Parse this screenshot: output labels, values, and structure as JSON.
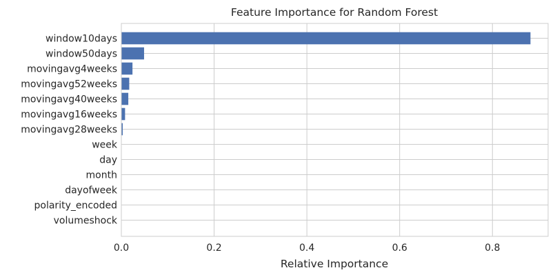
{
  "chart_data": {
    "type": "bar",
    "orientation": "horizontal",
    "title": "Feature Importance for Random Forest",
    "xlabel": "Relative Importance",
    "ylabel": "",
    "xlim": [
      0,
      0.92
    ],
    "xticks": [
      0.0,
      0.2,
      0.4,
      0.6,
      0.8
    ],
    "xtick_labels": [
      "0.0",
      "0.2",
      "0.4",
      "0.6",
      "0.8"
    ],
    "grid": true,
    "bar_color": "#4c72b0",
    "categories": [
      "window10days",
      "window50days",
      "movingavg4weeks",
      "movingavg52weeks",
      "movingavg40weeks",
      "movingavg16weeks",
      "movingavg28weeks",
      "week",
      "day",
      "month",
      "dayofweek",
      "polarity_encoded",
      "volumeshock"
    ],
    "values": [
      0.882,
      0.049,
      0.024,
      0.017,
      0.015,
      0.008,
      0.003,
      0.0,
      0.0,
      0.0,
      0.0,
      0.0,
      0.0
    ]
  }
}
